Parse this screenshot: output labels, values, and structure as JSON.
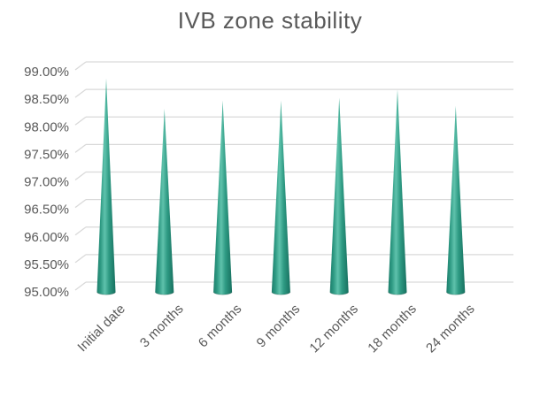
{
  "chart_data": {
    "type": "bar",
    "subtype": "3d-cone",
    "title": "IVB zone stability",
    "categories": [
      "Initial date",
      "3 months",
      "6 months",
      "9 months",
      "12 months",
      "18 months",
      "24 months"
    ],
    "values": [
      98.7,
      98.15,
      98.3,
      98.3,
      98.35,
      98.5,
      98.2
    ],
    "unit": "%",
    "xlabel": "",
    "ylabel": "",
    "ylim": [
      95.0,
      99.0
    ],
    "ytick_step": 0.5,
    "ytick_labels": [
      "99.00%",
      "98.50%",
      "98.00%",
      "97.50%",
      "97.00%",
      "96.50%",
      "96.00%",
      "95.50%",
      "95.00%"
    ],
    "grid": true,
    "legend": false,
    "colors": {
      "cone_dark": "#1d7d6b",
      "cone_mid": "#2e9a83",
      "cone_light": "#5fc2ac",
      "cone_shadow": "#17705f",
      "gridline": "#d9d9d9",
      "text": "#595959",
      "background": "#ffffff"
    }
  }
}
